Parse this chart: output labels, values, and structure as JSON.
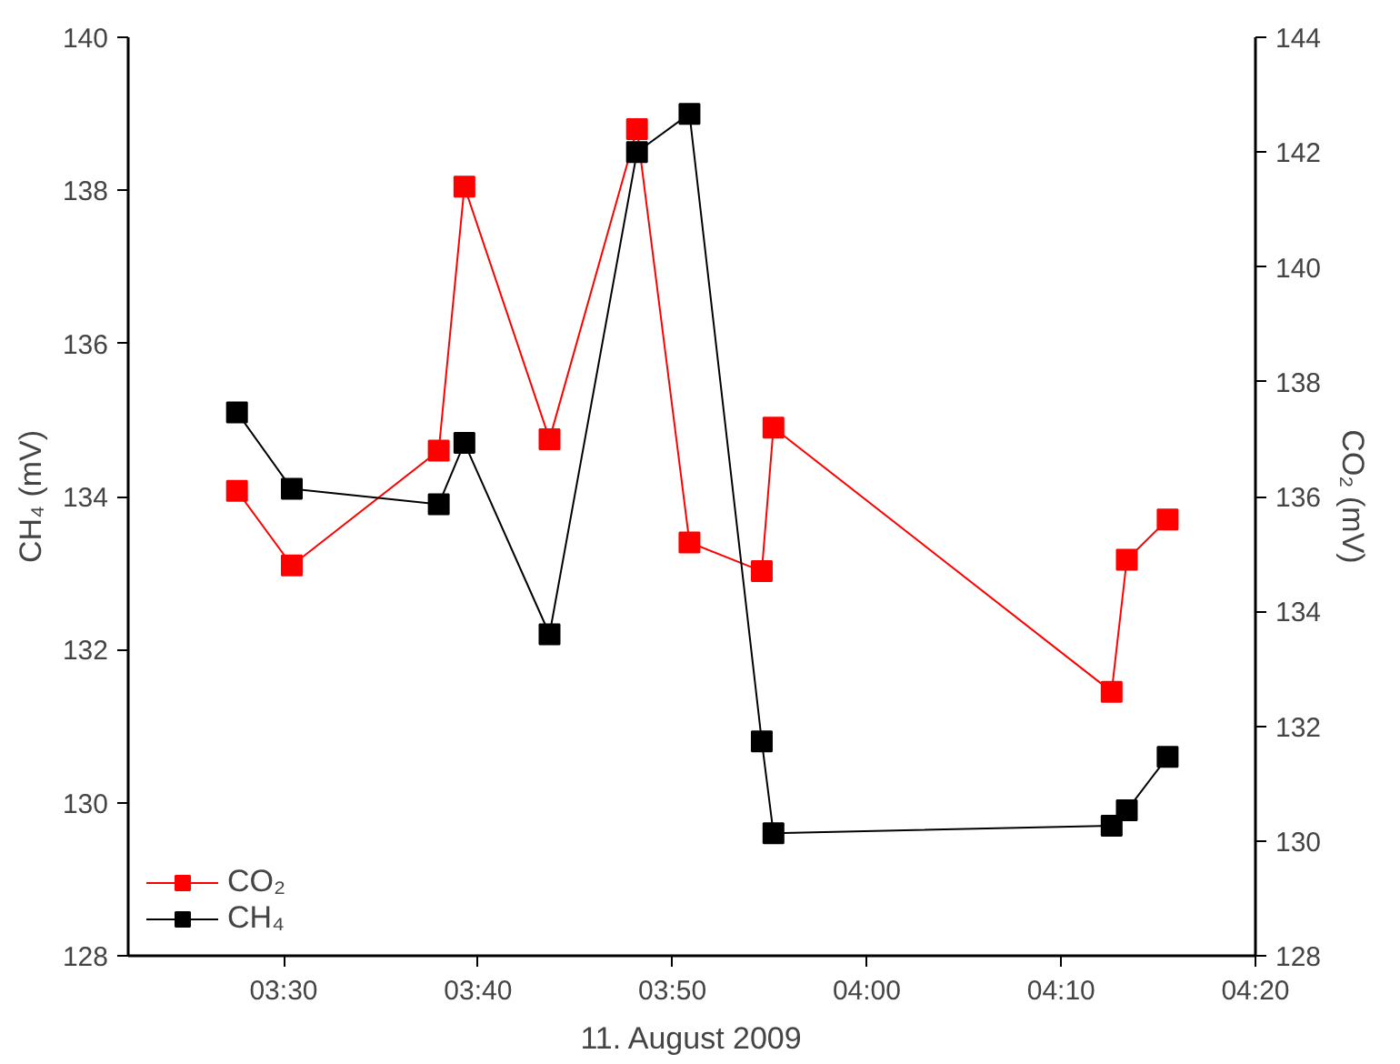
{
  "chart_data": {
    "type": "line",
    "xlabel": "11. August 2009",
    "ylabel": "CH₄ (mV)",
    "y2label": "CO₂ (mV)",
    "x": [
      3.46,
      3.507,
      3.633,
      3.655,
      3.728,
      3.803,
      3.848,
      3.91,
      3.92,
      4.21,
      4.223,
      4.258
    ],
    "series": [
      {
        "name": "CO₂",
        "color": "#ff0000",
        "axis": "y2",
        "values": [
          136.1,
          134.8,
          136.8,
          141.4,
          137.0,
          142.4,
          135.2,
          134.7,
          137.2,
          132.6,
          134.9,
          135.6
        ]
      },
      {
        "name": "CH₄",
        "color": "#000000",
        "values": [
          135.1,
          134.1,
          133.9,
          134.7,
          132.2,
          138.5,
          139.0,
          130.8,
          129.6,
          129.7,
          129.9,
          130.6
        ]
      }
    ],
    "xlim": [
      3.3667,
      4.3333
    ],
    "xticks": [
      {
        "value": 3.5,
        "label": "03:30"
      },
      {
        "value": 3.6667,
        "label": "03:40"
      },
      {
        "value": 3.8333,
        "label": "03:50"
      },
      {
        "value": 4.0,
        "label": "04:00"
      },
      {
        "value": 4.1667,
        "label": "04:10"
      },
      {
        "value": 4.3333,
        "label": "04:20"
      }
    ],
    "ylim": [
      128,
      140
    ],
    "yticks": [
      128,
      130,
      132,
      134,
      136,
      138,
      140
    ],
    "y2lim": [
      128,
      144
    ],
    "y2ticks": [
      128,
      130,
      132,
      134,
      136,
      138,
      140,
      142,
      144
    ],
    "legend": "bottom left",
    "grid": false,
    "marker": "square",
    "line_style": "solid"
  }
}
